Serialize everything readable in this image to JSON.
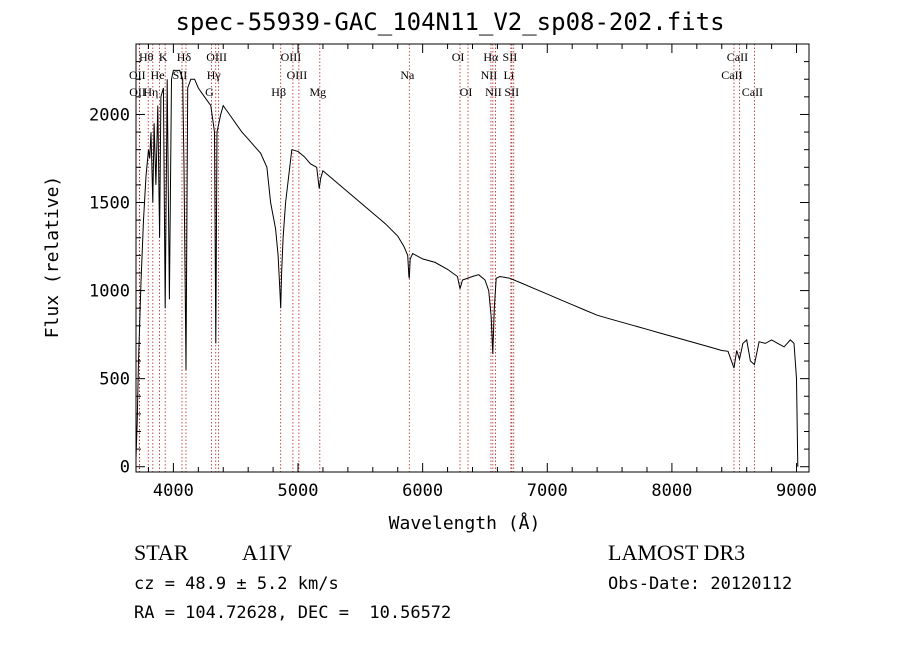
{
  "chart_data": {
    "type": "line",
    "title": "spec-55939-GAC_104N11_V2_sp08-202.fits",
    "xlabel": "Wavelength (Å)",
    "ylabel": "Flux (relative)",
    "xlim": [
      3700,
      9100
    ],
    "ylim": [
      -30,
      2400
    ],
    "xticks": [
      4000,
      5000,
      6000,
      7000,
      8000,
      9000
    ],
    "yticks": [
      0,
      500,
      1000,
      1500,
      2000
    ],
    "grid": false,
    "series": [
      {
        "name": "spectrum",
        "x": [
          3700,
          3710,
          3720,
          3740,
          3760,
          3780,
          3800,
          3810,
          3820,
          3835,
          3845,
          3860,
          3875,
          3889,
          3900,
          3920,
          3934,
          3950,
          3968,
          3985,
          4000,
          4020,
          4050,
          4075,
          4085,
          4101,
          4115,
          4140,
          4170,
          4200,
          4250,
          4300,
          4330,
          4340,
          4350,
          4380,
          4400,
          4450,
          4500,
          4550,
          4600,
          4650,
          4700,
          4750,
          4780,
          4820,
          4840,
          4855,
          4861,
          4868,
          4880,
          4900,
          4950,
          5000,
          5050,
          5100,
          5150,
          5170,
          5183,
          5200,
          5300,
          5400,
          5500,
          5600,
          5700,
          5800,
          5850,
          5880,
          5890,
          5893,
          5900,
          5920,
          6000,
          6100,
          6200,
          6280,
          6300,
          6320,
          6400,
          6450,
          6500,
          6530,
          6550,
          6563,
          6575,
          6590,
          6620,
          6700,
          6800,
          6900,
          7000,
          7100,
          7200,
          7300,
          7400,
          7500,
          7600,
          7700,
          7800,
          7900,
          8000,
          8100,
          8200,
          8300,
          8400,
          8450,
          8498,
          8520,
          8542,
          8570,
          8600,
          8630,
          8662,
          8700,
          8750,
          8800,
          8850,
          8900,
          8950,
          8980,
          9000,
          9010
        ],
        "values": [
          50,
          250,
          600,
          1050,
          1400,
          1650,
          1800,
          1750,
          1900,
          1500,
          1950,
          1600,
          2050,
          1300,
          2100,
          2150,
          900,
          2200,
          950,
          2200,
          2250,
          2250,
          2250,
          2200,
          1700,
          550,
          2150,
          2200,
          2200,
          2150,
          2100,
          2050,
          1900,
          700,
          1900,
          2000,
          2050,
          2000,
          1950,
          1900,
          1860,
          1820,
          1780,
          1700,
          1500,
          1350,
          1200,
          1000,
          900,
          1100,
          1300,
          1500,
          1800,
          1790,
          1760,
          1720,
          1700,
          1580,
          1640,
          1680,
          1620,
          1560,
          1500,
          1440,
          1380,
          1310,
          1250,
          1200,
          1080,
          1070,
          1180,
          1210,
          1180,
          1160,
          1120,
          1080,
          1010,
          1060,
          1080,
          1090,
          1060,
          1000,
          850,
          640,
          900,
          1070,
          1080,
          1070,
          1040,
          1010,
          980,
          950,
          920,
          890,
          860,
          840,
          820,
          800,
          780,
          760,
          740,
          720,
          700,
          680,
          660,
          655,
          560,
          660,
          610,
          700,
          720,
          600,
          580,
          710,
          700,
          720,
          700,
          680,
          720,
          700,
          500,
          0
        ]
      }
    ],
    "lines": [
      {
        "label": "Hθ",
        "wl": 3798,
        "row": 1,
        "side": "left"
      },
      {
        "label": "OII",
        "wl": 3727,
        "row": 2,
        "side": "left"
      },
      {
        "label": "OII",
        "wl": 3729,
        "row": 3,
        "side": "left"
      },
      {
        "label": "Hη",
        "wl": 3835,
        "row": 3,
        "side": "left"
      },
      {
        "label": "K",
        "wl": 3934,
        "row": 1,
        "side": "left"
      },
      {
        "label": "He",
        "wl": 3889,
        "row": 2,
        "side": "left"
      },
      {
        "label": "Hδ",
        "wl": 4101,
        "row": 1,
        "side": "left"
      },
      {
        "label": "SII",
        "wl": 4069,
        "row": 2,
        "side": "left"
      },
      {
        "label": "OIII",
        "wl": 4363,
        "row": 1,
        "side": "left"
      },
      {
        "label": "Hγ",
        "wl": 4340,
        "row": 2,
        "side": "left"
      },
      {
        "label": "G",
        "wl": 4305,
        "row": 3,
        "side": "left"
      },
      {
        "label": "OIII",
        "wl": 4959,
        "row": 1,
        "side": "left"
      },
      {
        "label": "OIII",
        "wl": 5007,
        "row": 2,
        "side": "left"
      },
      {
        "label": "Hβ",
        "wl": 4861,
        "row": 3,
        "side": "left"
      },
      {
        "label": "Mg",
        "wl": 5175,
        "row": 3,
        "side": "left"
      },
      {
        "label": "Na",
        "wl": 5893,
        "row": 2,
        "side": "left"
      },
      {
        "label": "OI",
        "wl": 6300,
        "row": 1,
        "side": "left"
      },
      {
        "label": "OI",
        "wl": 6364,
        "row": 3,
        "side": "left"
      },
      {
        "label": "Hα",
        "wl": 6563,
        "row": 1,
        "side": "left"
      },
      {
        "label": "SII",
        "wl": 6716,
        "row": 1,
        "side": "left"
      },
      {
        "label": "NII",
        "wl": 6548,
        "row": 2,
        "side": "left"
      },
      {
        "label": "Li",
        "wl": 6708,
        "row": 2,
        "side": "left"
      },
      {
        "label": "NII",
        "wl": 6584,
        "row": 3,
        "side": "left"
      },
      {
        "label": "SII",
        "wl": 6731,
        "row": 3,
        "side": "left"
      },
      {
        "label": "CaII",
        "wl": 8542,
        "row": 1,
        "side": "left"
      },
      {
        "label": "CaII",
        "wl": 8498,
        "row": 2,
        "side": "left"
      },
      {
        "label": "CaII",
        "wl": 8662,
        "row": 3,
        "side": "left"
      }
    ]
  },
  "info": {
    "class_label": "STAR",
    "subclass_label": "A1IV",
    "survey": "LAMOST DR3",
    "cz": "cz = 48.9 ± 5.2 km/s",
    "obs_date": "Obs-Date: 20120112",
    "coords": "RA = 104.72628, DEC =  10.56572"
  },
  "colors": {
    "spectrum": "#000000",
    "line_marker": "#b22222",
    "axis": "#000000"
  }
}
